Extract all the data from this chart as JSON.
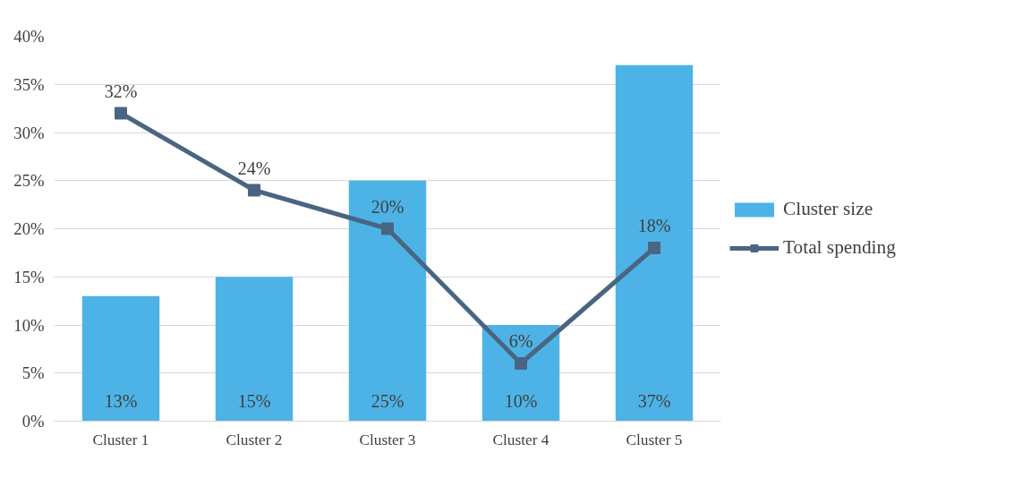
{
  "chart_data": {
    "type": "bar",
    "categories": [
      "Cluster 1",
      "Cluster 2",
      "Cluster 3",
      "Cluster 4",
      "Cluster 5"
    ],
    "series": [
      {
        "name": "Cluster size",
        "color": "#4db3e6",
        "values": [
          13,
          15,
          25,
          10,
          37
        ],
        "value_labels": [
          "13%",
          "15%",
          "25%",
          "10%",
          "37%"
        ]
      },
      {
        "name": "Total spending",
        "type": "line",
        "color": "#4a6582",
        "values": [
          32,
          24,
          20,
          6,
          18
        ],
        "value_labels": [
          "32%",
          "24%",
          "20%",
          "6%",
          "18%"
        ],
        "marker": "square",
        "line_style": "solid"
      }
    ],
    "ylim": [
      0,
      40
    ],
    "yticks": [
      {
        "value": 0,
        "label": "0%"
      },
      {
        "value": 5,
        "label": "5%"
      },
      {
        "value": 10,
        "label": "10%"
      },
      {
        "value": 15,
        "label": "15%"
      },
      {
        "value": 20,
        "label": "20%"
      },
      {
        "value": 25,
        "label": "25%"
      },
      {
        "value": 30,
        "label": "30%"
      },
      {
        "value": 35,
        "label": "35%"
      },
      {
        "value": 40,
        "label": "40%"
      }
    ],
    "grid": "y",
    "legend": "right"
  }
}
